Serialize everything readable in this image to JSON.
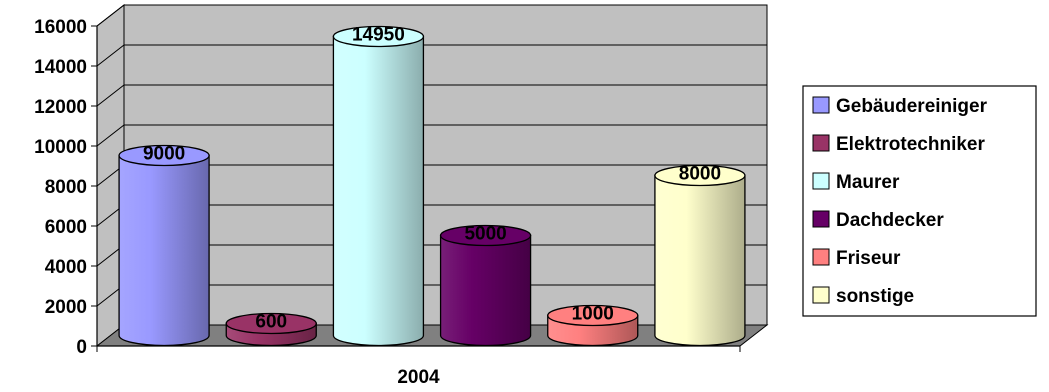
{
  "chart_data": {
    "type": "bar",
    "style": "3d-cylinder",
    "categories": [
      "2004"
    ],
    "series": [
      {
        "name": "Gebäudereiniger",
        "values": [
          9000
        ],
        "color": "#9999FF"
      },
      {
        "name": "Elektrotechniker",
        "values": [
          600
        ],
        "color": "#993366"
      },
      {
        "name": "Maurer",
        "values": [
          14950
        ],
        "color": "#CCFFFF"
      },
      {
        "name": "Dachdecker",
        "values": [
          5000
        ],
        "color": "#660066"
      },
      {
        "name": "Friseur",
        "values": [
          1000
        ],
        "color": "#FF8080"
      },
      {
        "name": "sonstige",
        "values": [
          8000
        ],
        "color": "#FFFFCC"
      }
    ],
    "title": "",
    "xlabel": "",
    "ylabel": "",
    "ylim": [
      0,
      16000
    ],
    "yticks": [
      "0",
      "2000",
      "4000",
      "6000",
      "8000",
      "10000",
      "12000",
      "14000",
      "16000"
    ],
    "data_labels": [
      "9000",
      "600",
      "14950",
      "5000",
      "1000",
      "8000"
    ],
    "grid": true,
    "legend_position": "right",
    "wall_color": "#C0C0C0",
    "floor_color": "#808080"
  }
}
